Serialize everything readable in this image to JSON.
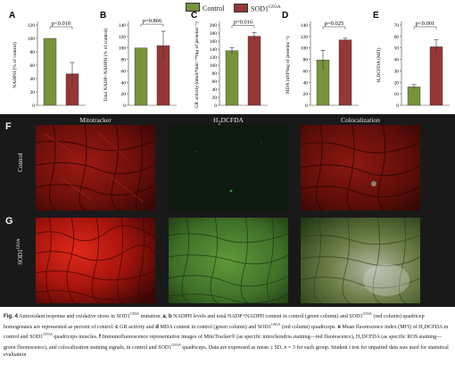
{
  "legend": {
    "items": [
      {
        "label": "Control",
        "color": "#77933c"
      },
      {
        "label": "SOD1",
        "sup": "G93A",
        "color": "#953735"
      }
    ]
  },
  "chart_data": [
    {
      "type": "bar",
      "panel": "A",
      "categories": [
        "Control",
        "SOD1G93A"
      ],
      "values": [
        100,
        47
      ],
      "errors": [
        0,
        17
      ],
      "ylabel": "NADPH (% of control)",
      "ylim": [
        0,
        120
      ],
      "yticks": [
        "0",
        "20",
        "40",
        "60",
        "80",
        "100",
        "120"
      ],
      "significance": "p<0.010",
      "colors": [
        "#77933c",
        "#953735"
      ]
    },
    {
      "type": "bar",
      "panel": "B",
      "categories": [
        "Control",
        "SOD1G93A"
      ],
      "values": [
        100,
        104
      ],
      "errors": [
        0,
        25
      ],
      "ylabel": "Total NADP+NADPH (% of control)",
      "ylim": [
        0,
        140
      ],
      "yticks": [
        "0",
        "20",
        "40",
        "60",
        "80",
        "100",
        "120",
        "140"
      ],
      "significance": "p=0.866",
      "colors": [
        "#77933c",
        "#953735"
      ]
    },
    {
      "type": "bar",
      "panel": "C",
      "categories": [
        "Control",
        "SOD1G93A"
      ],
      "values": [
        136,
        172
      ],
      "errors": [
        8,
        9
      ],
      "ylabel": "GR activity (nmol*min⁻¹*mg of proteins⁻¹)",
      "ylim": [
        0,
        200
      ],
      "yticks": [
        "0",
        "20",
        "40",
        "60",
        "80",
        "100",
        "120",
        "140",
        "160",
        "180",
        "200"
      ],
      "significance": "p=0.016",
      "colors": [
        "#77933c",
        "#953735"
      ]
    },
    {
      "type": "bar",
      "panel": "D",
      "categories": [
        "Control",
        "SOD1G93A"
      ],
      "values": [
        79,
        114
      ],
      "errors": [
        17,
        3
      ],
      "ylabel": "MDA (nM*mg of proteins⁻¹)",
      "ylim": [
        0,
        140
      ],
      "yticks": [
        "0",
        "20",
        "40",
        "60",
        "80",
        "100",
        "120",
        "140"
      ],
      "significance": "p=0.025",
      "colors": [
        "#77933c",
        "#953735"
      ]
    },
    {
      "type": "bar",
      "panel": "E",
      "categories": [
        "Control",
        "SOD1G93A"
      ],
      "values": [
        16,
        51
      ],
      "errors": [
        2,
        6
      ],
      "ylabel": "H₂DCFDA (MFI)",
      "ylim": [
        0,
        70
      ],
      "yticks": [
        "0",
        "10",
        "20",
        "30",
        "40",
        "50",
        "60",
        "70"
      ],
      "significance": "p<0.001",
      "colors": [
        "#77933c",
        "#953735"
      ]
    }
  ],
  "microscopy": {
    "panels": [
      {
        "letter": "F",
        "row_label": "Control",
        "row_sup": ""
      },
      {
        "letter": "G",
        "row_label": "SOD1",
        "row_sup": "G93A"
      }
    ],
    "columns": [
      {
        "label": "Mitotracker",
        "sub": "",
        "rest": ""
      },
      {
        "label": "H",
        "sub": "2",
        "rest": "DCFDA"
      },
      {
        "label": "Colocalization",
        "sub": "",
        "rest": ""
      }
    ]
  },
  "caption": {
    "fig_label": "Fig. 4",
    "seg1": " Antioxidant response and oxidative stress in SOD1",
    "sup1": "G93A",
    "seg2": " mutation. ",
    "b_a": "a",
    "seg3": ", ",
    "b_b": "b",
    "seg4": " NADPH levels and total NADP+NADPH content in control (green column) and SOD1",
    "sup2": "G93A",
    "seg5": " (red column) quadricep homogenates are represented as percent of control. ",
    "b_c": "c",
    "seg6": " GR activity and ",
    "b_d": "d",
    "seg7": " MDA content in control (green column) and SOD1",
    "sup3": "G93A",
    "seg8": " (red column) quadriceps. ",
    "b_e": "e",
    "seg9": " Mean fluorescence index (MFI) of H₂DCFDA in control and SOD1",
    "sup4": "G93A",
    "seg10": " quadriceps muscles. ",
    "b_f": "f",
    "seg11": " Immunofluorescence representative images of MitoTracker® (as specific mitochondria staining—red fluorescence), H₂DCFDA (as specific ROS staining—green fluorescence), and colocalization staining signals, in control and SOD1",
    "sup5": "G93A",
    "seg12": " quadriceps. Data are expressed as mean ± SD, ",
    "italic_n": "n",
    "seg13": " = 3 for each group. Student ",
    "italic_t": "t",
    "seg14": " test for unpaired data was used for statistical evaluation"
  }
}
